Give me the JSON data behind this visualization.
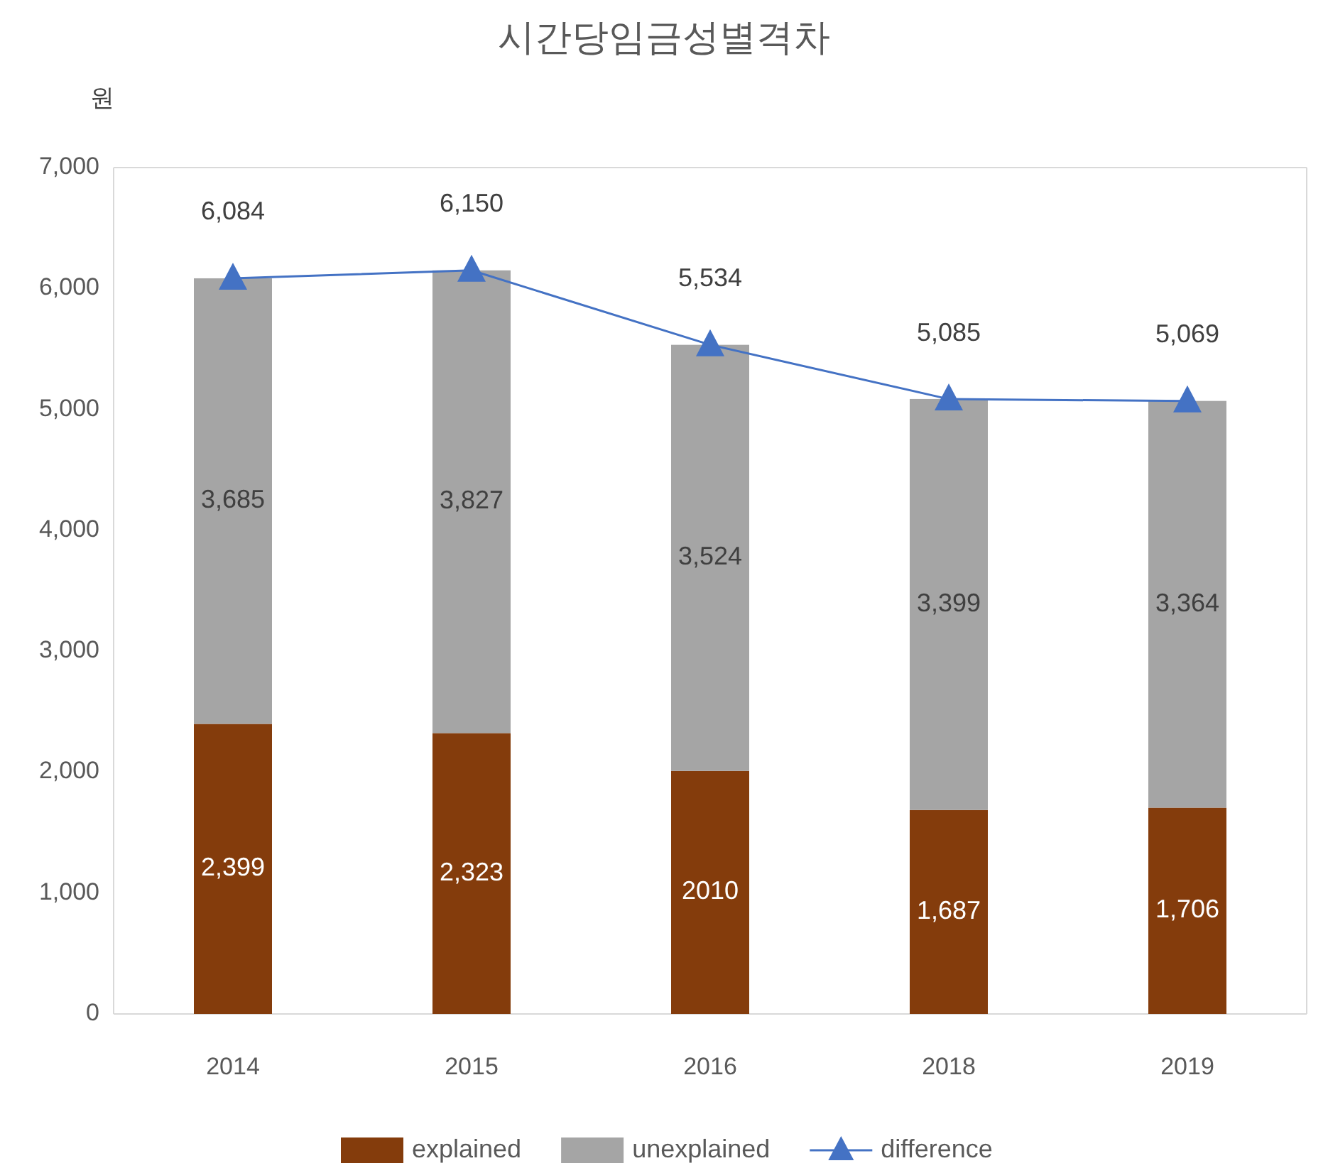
{
  "chart_data": {
    "type": "bar",
    "title": "시간당임금성별격차",
    "ylabel": "원",
    "categories": [
      "2014",
      "2015",
      "2016",
      "2018",
      "2019"
    ],
    "stacked": true,
    "series": [
      {
        "name": "explained",
        "color": "#843c0c",
        "values": [
          2399,
          2323,
          2010,
          1687,
          1706
        ],
        "value_labels": [
          "2,399",
          "2,323",
          "2010",
          "1,687",
          "1,706"
        ]
      },
      {
        "name": "unexplained",
        "color": "#a5a5a5",
        "values": [
          3685,
          3827,
          3524,
          3399,
          3364
        ],
        "value_labels": [
          "3,685",
          "3,827",
          "3,524",
          "3,399",
          "3,364"
        ]
      },
      {
        "name": "difference",
        "type": "line",
        "color": "#4472c4",
        "marker": "triangle",
        "values": [
          6084,
          6150,
          5534,
          5085,
          5069
        ],
        "value_labels": [
          "6,084",
          "6,150",
          "5,534",
          "5,085",
          "5,069"
        ]
      }
    ],
    "ylim": [
      0,
      7000
    ],
    "yticks": [
      {
        "value": 0,
        "label": "0"
      },
      {
        "value": 1000,
        "label": "1,000"
      },
      {
        "value": 2000,
        "label": "2,000"
      },
      {
        "value": 3000,
        "label": "3,000"
      },
      {
        "value": 4000,
        "label": "4,000"
      },
      {
        "value": 5000,
        "label": "5,000"
      },
      {
        "value": 6000,
        "label": "6,000"
      },
      {
        "value": 7000,
        "label": "7,000"
      }
    ],
    "grid": false,
    "legend": "bottom"
  }
}
